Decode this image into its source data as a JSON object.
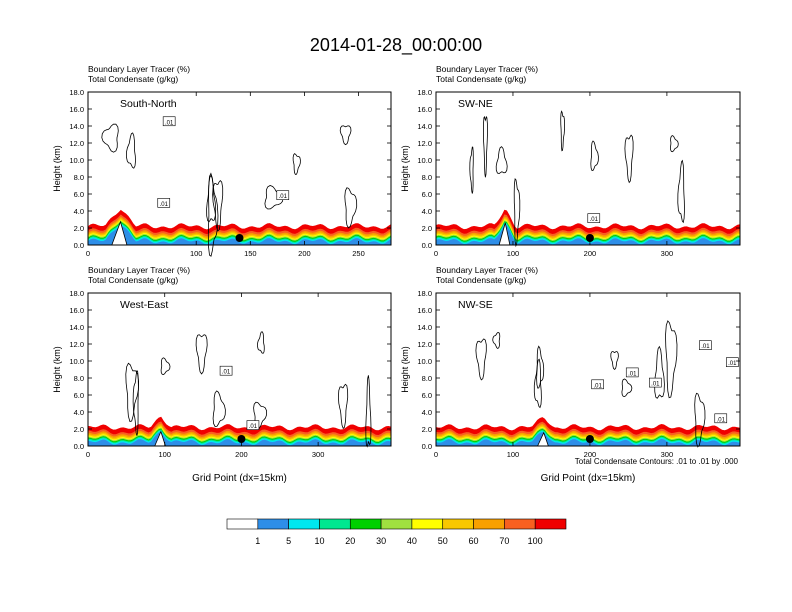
{
  "title": "2014-01-28_00:00:00",
  "variable_labels": [
    "Boundary Layer Tracer   (%)",
    "Total Condensate   (g/kg)"
  ],
  "y_axis_label": "Height (km)",
  "x_axis_label": "Grid Point (dx=15km)",
  "contour_note": "Total Condensate Contours: .01 to .01 by .000",
  "contour_label": ".01",
  "colorbar": {
    "levels": [
      "1",
      "5",
      "10",
      "20",
      "30",
      "40",
      "50",
      "60",
      "70",
      "100"
    ],
    "colors": [
      "#ffffff",
      "#2e8ee8",
      "#00e8f0",
      "#00e890",
      "#00d000",
      "#a0e040",
      "#ffff00",
      "#f8c800",
      "#f8a000",
      "#f86020",
      "#f00000"
    ]
  },
  "chart_data": [
    {
      "type": "cross-section",
      "panel_label": "South-North",
      "xlim": [
        0,
        280
      ],
      "xticks": [
        "0",
        "100",
        "150",
        "200",
        "250"
      ],
      "xtick_values": [
        0,
        100,
        150,
        200,
        250
      ],
      "extra_xtick_labels": [
        {
          "value": 50,
          "label": ""
        }
      ],
      "ylim": [
        0,
        18
      ],
      "yticks": [
        "0.0",
        "2.0",
        "4.0",
        "6.0",
        "8.0",
        "10.0",
        "12.0",
        "14.0",
        "16.0",
        "18.0"
      ],
      "marker_x": 140,
      "terrain_peak": {
        "x": 30,
        "height": 4.2
      },
      "contour_label_positions": [
        [
          75,
          14.5
        ],
        [
          70,
          4.9
        ],
        [
          180,
          5.8
        ]
      ]
    },
    {
      "type": "cross-section",
      "panel_label": "SW-NE",
      "xlim": [
        0,
        395
      ],
      "xticks": [
        "0",
        "100",
        "200",
        "300"
      ],
      "xtick_values": [
        0,
        100,
        200,
        300
      ],
      "ylim": [
        0,
        18
      ],
      "yticks": [
        "0.0",
        "2.0",
        "4.0",
        "6.0",
        "8.0",
        "10.0",
        "12.0",
        "14.0",
        "16.0",
        "18.0"
      ],
      "marker_x": 200,
      "terrain_peak": {
        "x": 90,
        "height": 4.0
      },
      "contour_label_positions": [
        [
          205,
          3.1
        ]
      ]
    },
    {
      "type": "cross-section",
      "panel_label": "West-East",
      "xlim": [
        0,
        395
      ],
      "xticks": [
        "0",
        "100",
        "200",
        "300"
      ],
      "xtick_values": [
        0,
        100,
        200,
        300
      ],
      "ylim": [
        0,
        18
      ],
      "yticks": [
        "0.0",
        "2.0",
        "4.0",
        "6.0",
        "8.0",
        "10.0",
        "12.0",
        "14.0",
        "16.0",
        "18.0"
      ],
      "marker_x": 200,
      "terrain_peak": {
        "x": 95,
        "height": 2.6
      },
      "contour_label_positions": [
        [
          180,
          8.8
        ],
        [
          215,
          2.4
        ]
      ]
    },
    {
      "type": "cross-section",
      "panel_label": "NW-SE",
      "xlim": [
        0,
        395
      ],
      "xticks": [
        "0",
        "100",
        "200",
        "300"
      ],
      "xtick_values": [
        0,
        100,
        200,
        300
      ],
      "ylim": [
        0,
        18
      ],
      "yticks": [
        "0.0",
        "2.0",
        "4.0",
        "6.0",
        "8.0",
        "10.0",
        "12.0",
        "14.0",
        "16.0",
        "18.0"
      ],
      "marker_x": 200,
      "terrain_peak": {
        "x": 140,
        "height": 2.4
      },
      "contour_label_positions": [
        [
          210,
          7.2
        ],
        [
          255,
          8.6
        ],
        [
          285,
          7.4
        ],
        [
          350,
          11.8
        ],
        [
          385,
          9.8
        ],
        [
          370,
          3.2
        ]
      ]
    }
  ]
}
